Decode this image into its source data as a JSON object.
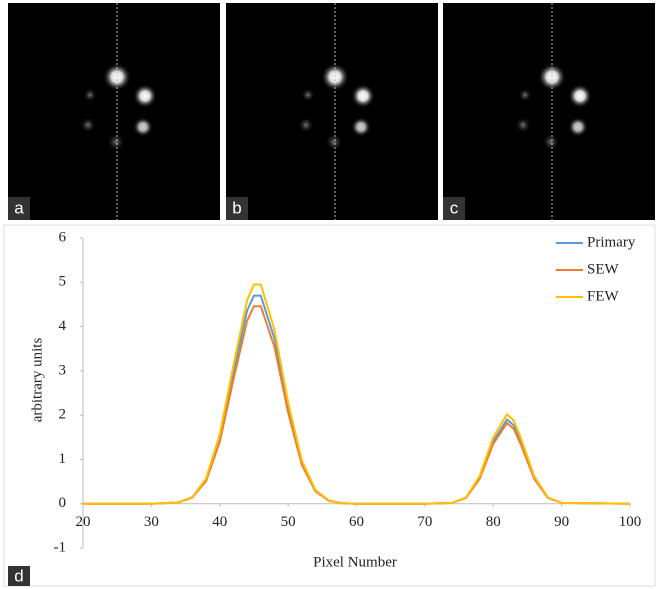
{
  "panel_labels": [
    "a",
    "b",
    "c",
    "d"
  ],
  "chart_data": {
    "type": "line",
    "xlabel": "Pixel Number",
    "ylabel": "arbitrary units",
    "x": [
      20,
      30,
      34,
      36,
      38,
      40,
      42,
      44,
      45,
      46,
      48,
      50,
      52,
      54,
      56,
      58,
      60,
      70,
      74,
      76,
      78,
      80,
      82,
      83,
      84,
      86,
      88,
      90,
      100
    ],
    "series": [
      {
        "name": "Primary",
        "color": "#5b9bd5",
        "values": [
          0,
          0,
          0.03,
          0.15,
          0.54,
          1.48,
          2.96,
          4.36,
          4.7,
          4.7,
          3.73,
          2.18,
          0.93,
          0.29,
          0.07,
          0.01,
          0,
          0,
          0.02,
          0.13,
          0.58,
          1.41,
          1.9,
          1.77,
          1.41,
          0.58,
          0.13,
          0.02,
          0
        ]
      },
      {
        "name": "SEW",
        "color": "#ed7d31",
        "values": [
          0,
          0,
          0.03,
          0.14,
          0.51,
          1.4,
          2.8,
          4.13,
          4.46,
          4.46,
          3.54,
          2.06,
          0.88,
          0.28,
          0.06,
          0.01,
          0,
          0,
          0.02,
          0.13,
          0.56,
          1.35,
          1.82,
          1.69,
          1.35,
          0.56,
          0.13,
          0.02,
          0
        ]
      },
      {
        "name": "FEW",
        "color": "#ffc000",
        "values": [
          0,
          0,
          0.03,
          0.15,
          0.57,
          1.56,
          3.12,
          4.59,
          4.95,
          4.95,
          3.93,
          2.29,
          0.98,
          0.31,
          0.07,
          0.01,
          0,
          0,
          0.02,
          0.14,
          0.62,
          1.5,
          2.02,
          1.88,
          1.5,
          0.62,
          0.14,
          0.02,
          0
        ]
      }
    ],
    "xlim": [
      20,
      100
    ],
    "xticks": [
      20,
      30,
      40,
      50,
      60,
      70,
      80,
      90,
      100
    ],
    "ylim": [
      -1,
      6
    ],
    "yticks": [
      -1,
      0,
      1,
      2,
      3,
      4,
      5,
      6
    ],
    "legend": "top-right",
    "grid": false
  }
}
